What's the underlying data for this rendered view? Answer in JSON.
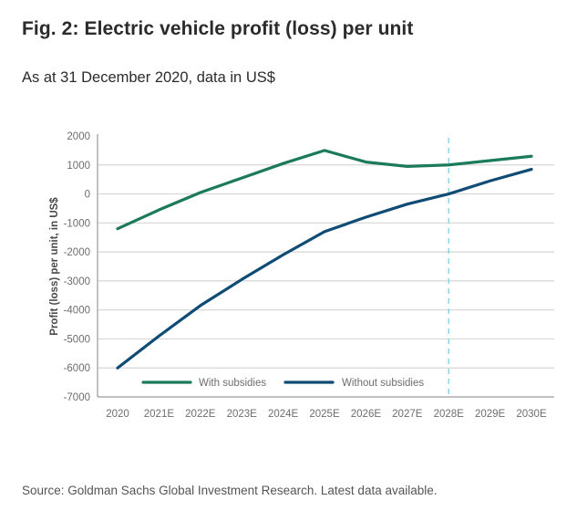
{
  "chart_data": {
    "type": "line",
    "title": "Fig. 2: Electric vehicle profit (loss) per unit",
    "subtitle": "As at 31 December 2020, data in US$",
    "xlabel": "",
    "ylabel": "Profit (loss) per unit, in US$",
    "categories": [
      "2020",
      "2021E",
      "2022E",
      "2023E",
      "2024E",
      "2025E",
      "2026E",
      "2027E",
      "2028E",
      "2029E",
      "2030E"
    ],
    "yticks": [
      2000,
      1000,
      0,
      -1000,
      -2000,
      -3000,
      -4000,
      -5000,
      -6000,
      -7000
    ],
    "ylim": [
      -7000,
      2000
    ],
    "grid": true,
    "series": [
      {
        "name": "With subsidies",
        "color": "#1b7a5a",
        "values": [
          -1200,
          -550,
          50,
          550,
          1050,
          1500,
          1100,
          950,
          1000,
          1150,
          1300
        ]
      },
      {
        "name": "Without subsidies",
        "color": "#0f4c75",
        "values": [
          -6000,
          -4900,
          -3850,
          -2950,
          -2100,
          -1300,
          -800,
          -350,
          0,
          450,
          850
        ]
      }
    ],
    "annotations": [
      {
        "type": "vertical-dashed-line",
        "x": "2028E",
        "color": "#7fcfe0"
      }
    ],
    "legend": "bottom-inside"
  },
  "source": "Source: Goldman Sachs Global Investment Research. Latest data available."
}
